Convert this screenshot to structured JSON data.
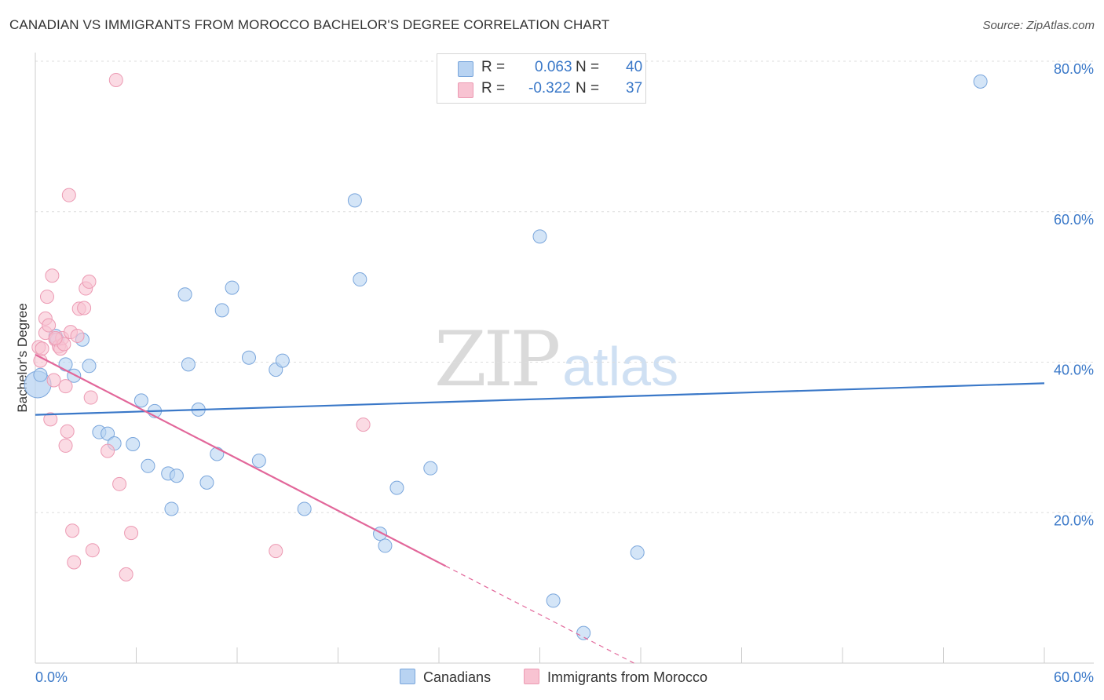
{
  "title": "CANADIAN VS IMMIGRANTS FROM MOROCCO BACHELOR'S DEGREE CORRELATION CHART",
  "source": "Source: ZipAtlas.com",
  "watermark": {
    "part1": "ZIP",
    "part2": "atlas"
  },
  "legend": {
    "series": [
      {
        "r_label": "R =",
        "r_value": "0.063",
        "n_label": "N =",
        "n_value": "40"
      },
      {
        "r_label": "R =",
        "r_value": "-0.322",
        "n_label": "N =",
        "n_value": "37"
      }
    ]
  },
  "bottom_legend": [
    "Canadians",
    "Immigrants from Morocco"
  ],
  "colors": {
    "blue_fill": "#b8d3f2",
    "blue_stroke": "#7aa6dc",
    "blue_line": "#3a78c8",
    "pink_fill": "#f8c3d2",
    "pink_stroke": "#ec9ab3",
    "pink_line": "#e2679a",
    "axis_label": "#3a78c8",
    "grid": "#dddddd"
  },
  "chart_data": {
    "type": "scatter",
    "title": "CANADIAN VS IMMIGRANTS FROM MOROCCO BACHELOR'S DEGREE CORRELATION CHART",
    "xlabel": "",
    "ylabel": "Bachelor's Degree",
    "xlim": [
      0,
      60
    ],
    "ylim": [
      0,
      80
    ],
    "x_tick_labels": [
      "0.0%",
      "60.0%"
    ],
    "y_ticks": [
      20,
      40,
      60,
      80
    ],
    "y_tick_labels": [
      "20.0%",
      "40.0%",
      "60.0%",
      "80.0%"
    ],
    "grid": true,
    "legend_position": "top-center",
    "series": [
      {
        "name": "Canadians",
        "r": 0.063,
        "n": 40,
        "trend": {
          "x0": 0,
          "y0": 33.0,
          "x1": 60,
          "y1": 37.2,
          "solid_until": 60
        },
        "points": [
          [
            0.3,
            38.3
          ],
          [
            1.2,
            43.5
          ],
          [
            1.3,
            43.0
          ],
          [
            1.8,
            39.7
          ],
          [
            2.3,
            38.2
          ],
          [
            2.8,
            43.0
          ],
          [
            3.2,
            39.5
          ],
          [
            3.8,
            30.7
          ],
          [
            4.3,
            30.5
          ],
          [
            4.7,
            29.2
          ],
          [
            5.8,
            29.1
          ],
          [
            6.3,
            34.9
          ],
          [
            6.7,
            26.2
          ],
          [
            7.1,
            33.5
          ],
          [
            7.9,
            25.2
          ],
          [
            8.1,
            20.5
          ],
          [
            8.4,
            24.9
          ],
          [
            8.9,
            49.0
          ],
          [
            9.1,
            39.7
          ],
          [
            9.7,
            33.7
          ],
          [
            10.2,
            24.0
          ],
          [
            10.8,
            27.8
          ],
          [
            11.1,
            46.9
          ],
          [
            11.7,
            49.9
          ],
          [
            12.7,
            40.6
          ],
          [
            13.3,
            26.9
          ],
          [
            14.3,
            39.0
          ],
          [
            14.7,
            40.2
          ],
          [
            16.0,
            20.5
          ],
          [
            19.0,
            61.5
          ],
          [
            19.3,
            51.0
          ],
          [
            20.5,
            17.2
          ],
          [
            20.8,
            15.6
          ],
          [
            21.5,
            23.3
          ],
          [
            23.5,
            25.9
          ],
          [
            30.0,
            56.7
          ],
          [
            30.8,
            8.3
          ],
          [
            32.6,
            4.0
          ],
          [
            35.8,
            14.7
          ],
          [
            56.2,
            77.3
          ]
        ]
      },
      {
        "name": "Immigrants from Morocco",
        "r": -0.322,
        "n": 37,
        "trend": {
          "x0": 0,
          "y0": 41.0,
          "x1": 35.6,
          "y1": 0,
          "solid_until": 24.4
        },
        "points": [
          [
            0.2,
            42.0
          ],
          [
            0.3,
            40.2
          ],
          [
            0.4,
            41.8
          ],
          [
            0.6,
            43.9
          ],
          [
            0.6,
            45.8
          ],
          [
            0.7,
            48.7
          ],
          [
            0.8,
            44.9
          ],
          [
            0.9,
            32.4
          ],
          [
            1.0,
            51.5
          ],
          [
            1.1,
            37.6
          ],
          [
            1.2,
            43.0
          ],
          [
            1.4,
            42.1
          ],
          [
            1.5,
            41.8
          ],
          [
            1.6,
            43.2
          ],
          [
            1.7,
            42.4
          ],
          [
            1.8,
            36.8
          ],
          [
            1.8,
            28.9
          ],
          [
            1.9,
            30.8
          ],
          [
            2.0,
            62.2
          ],
          [
            2.1,
            44.0
          ],
          [
            2.2,
            17.6
          ],
          [
            2.3,
            13.4
          ],
          [
            2.5,
            43.5
          ],
          [
            2.6,
            47.1
          ],
          [
            2.9,
            47.2
          ],
          [
            3.0,
            49.8
          ],
          [
            3.2,
            50.7
          ],
          [
            3.3,
            35.3
          ],
          [
            3.4,
            15.0
          ],
          [
            4.3,
            28.2
          ],
          [
            4.8,
            77.5
          ],
          [
            5.0,
            23.8
          ],
          [
            5.4,
            11.8
          ],
          [
            5.7,
            17.3
          ],
          [
            14.3,
            14.9
          ],
          [
            19.5,
            31.7
          ],
          [
            1.2,
            43.2
          ]
        ]
      }
    ]
  }
}
